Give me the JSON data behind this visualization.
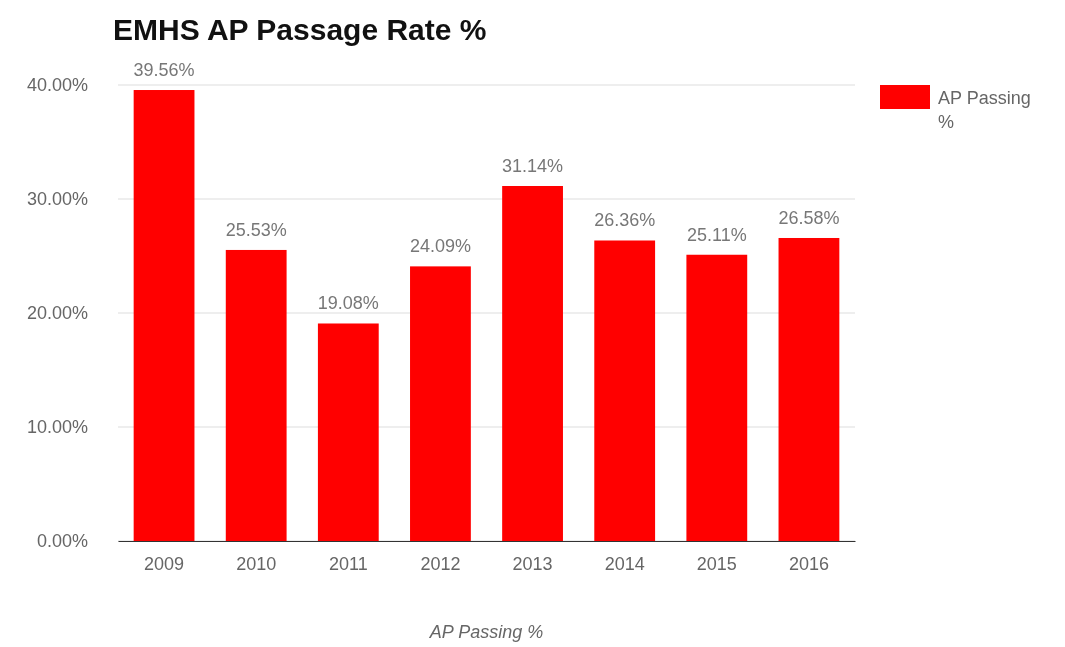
{
  "chart_data": {
    "type": "bar",
    "title": "EMHS AP Passage Rate %",
    "xlabel": "AP Passing %",
    "categories": [
      "2009",
      "2010",
      "2011",
      "2012",
      "2013",
      "2014",
      "2015",
      "2016"
    ],
    "series": [
      {
        "name": "AP Passing %",
        "color": "#ff0000",
        "values": [
          39.56,
          25.53,
          19.08,
          24.09,
          31.14,
          26.36,
          25.11,
          26.58
        ],
        "value_labels": [
          "39.56%",
          "25.53%",
          "19.08%",
          "24.09%",
          "31.14%",
          "26.36%",
          "25.11%",
          "26.58%"
        ]
      }
    ],
    "ylim": [
      0,
      40
    ],
    "yticks": [
      {
        "value": 0,
        "label": "0.00%"
      },
      {
        "value": 10,
        "label": "10.00%"
      },
      {
        "value": 20,
        "label": "20.00%"
      },
      {
        "value": 30,
        "label": "30.00%"
      },
      {
        "value": 40,
        "label": "40.00%"
      }
    ],
    "grid": "y",
    "legend": "top right"
  }
}
